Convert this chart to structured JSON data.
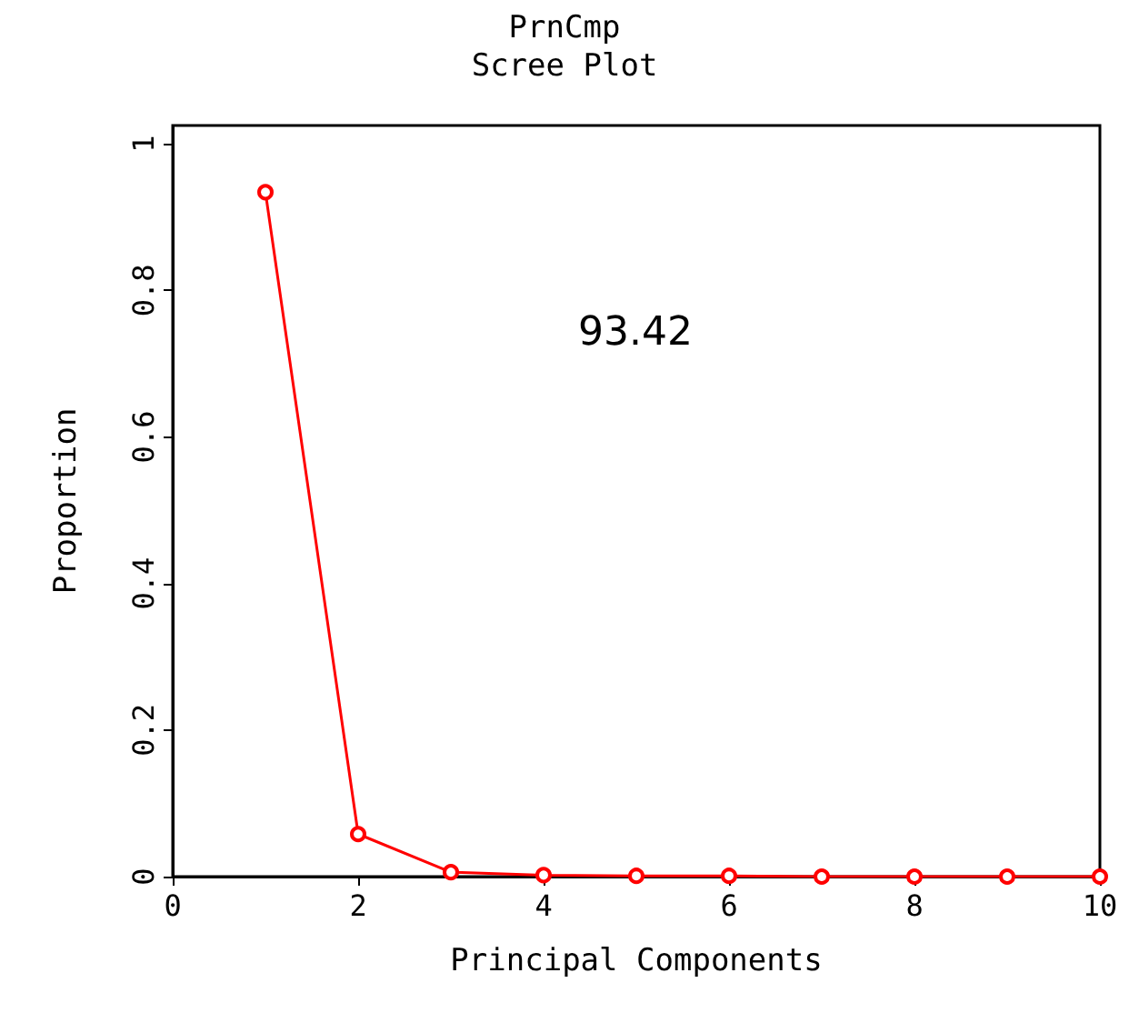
{
  "chart_data": {
    "type": "line",
    "title": "PrnCmp",
    "subtitle": "Scree Plot",
    "xlabel": "Principal Components",
    "ylabel": "Proportion",
    "x": [
      1,
      2,
      3,
      4,
      5,
      6,
      7,
      8,
      9,
      10
    ],
    "series": [
      {
        "color": "#ff0000",
        "values": [
          0.934,
          0.058,
          0.006,
          0.002,
          0.001,
          0.001,
          0,
          0,
          0,
          0
        ]
      }
    ],
    "xlim": [
      0,
      10
    ],
    "xticks": [
      0,
      2,
      4,
      6,
      8,
      10
    ],
    "ylim": [
      0,
      1.025
    ],
    "yticks": [
      0,
      0.2,
      0.4,
      0.6,
      0.8,
      1
    ],
    "annotations": [
      "93.42"
    ],
    "grid": false,
    "marker": "circle",
    "line_style": "solid"
  }
}
